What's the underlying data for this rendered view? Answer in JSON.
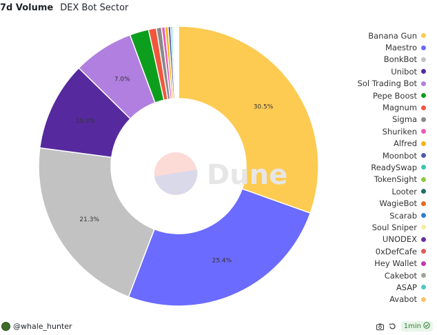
{
  "header": {
    "title": "7d Volume",
    "subtitle": "DEX Bot Sector"
  },
  "watermark": {
    "text": "Dune"
  },
  "footer": {
    "author": "@whale_hunter",
    "refresh_label": "1min"
  },
  "icons": [
    "camera-icon",
    "refresh-icon",
    "check-circle-icon"
  ],
  "chart_data": {
    "type": "pie",
    "title": "7d Volume",
    "subtitle": "DEX Bot Sector",
    "donut": true,
    "legend_position": "right",
    "slices": [
      {
        "label": "Banana Gun",
        "value": 30.5,
        "color": "#fdcb52",
        "show_label": true
      },
      {
        "label": "Maestro",
        "value": 25.4,
        "color": "#6b6bff",
        "show_label": true
      },
      {
        "label": "BonkBot",
        "value": 21.3,
        "color": "#c2c2c2",
        "show_label": true
      },
      {
        "label": "Unibot",
        "value": 10.3,
        "color": "#562a9e",
        "show_label": true
      },
      {
        "label": "Sol Trading Bot",
        "value": 7.0,
        "color": "#b17fe0",
        "show_label": true
      },
      {
        "label": "Pepe Boost",
        "value": 2.2,
        "color": "#0e9e1e",
        "show_label": false
      },
      {
        "label": "Magnum",
        "value": 0.9,
        "color": "#f2563d",
        "show_label": false
      },
      {
        "label": "Sigma",
        "value": 0.6,
        "color": "#8a8a8a",
        "show_label": false
      },
      {
        "label": "Shuriken",
        "value": 0.4,
        "color": "#ea5bb4",
        "show_label": false
      },
      {
        "label": "Alfred",
        "value": 0.35,
        "color": "#f2b50f",
        "show_label": false
      },
      {
        "label": "Moonbot",
        "value": 0.3,
        "color": "#4e5aa8",
        "show_label": false
      },
      {
        "label": "ReadySwap",
        "value": 0.2,
        "color": "#3cc7b2",
        "show_label": false
      },
      {
        "label": "TokenSight",
        "value": 0.15,
        "color": "#8ec83c",
        "show_label": false
      },
      {
        "label": "Looter",
        "value": 0.12,
        "color": "#1f6e63",
        "show_label": false
      },
      {
        "label": "WagieBot",
        "value": 0.1,
        "color": "#e36a1d",
        "show_label": false
      },
      {
        "label": "Scarab",
        "value": 0.08,
        "color": "#2d7fcf",
        "show_label": false
      },
      {
        "label": "Soul Sniper",
        "value": 0.06,
        "color": "#f6ef9a",
        "show_label": false
      },
      {
        "label": "UNODEX",
        "value": 0.05,
        "color": "#6a2f9c",
        "show_label": false
      },
      {
        "label": "0xDefCafe",
        "value": 0.04,
        "color": "#e05a5a",
        "show_label": false
      },
      {
        "label": "Hey Wallet",
        "value": 0.03,
        "color": "#c23bb0",
        "show_label": false
      },
      {
        "label": "Cakebot",
        "value": 0.03,
        "color": "#9ea59a",
        "show_label": false
      },
      {
        "label": "ASAP",
        "value": 0.02,
        "color": "#4fc7c7",
        "show_label": false
      },
      {
        "label": "Avabot",
        "value": 0.02,
        "color": "#f5c46b",
        "show_label": false
      }
    ]
  }
}
